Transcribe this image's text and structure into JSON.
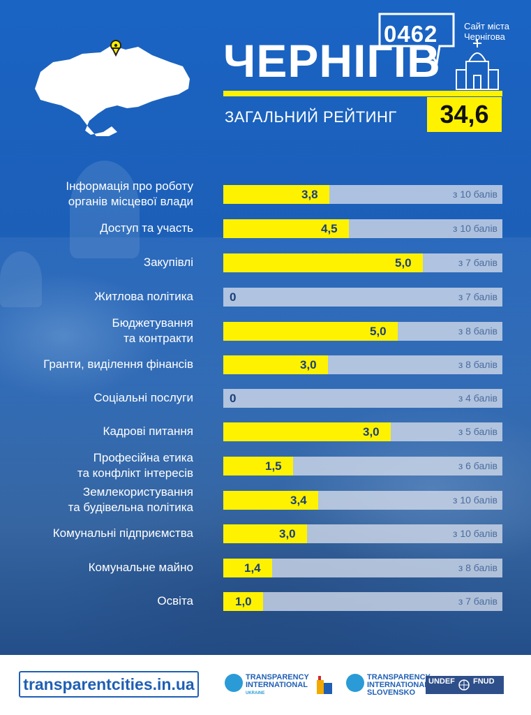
{
  "logo": {
    "number": "0462",
    "caption_line1": "Сайт міста",
    "caption_line2": "Чернігова"
  },
  "header": {
    "city": "ЧЕРНІГІВ",
    "subtitle": "ЗАГАЛЬНИЙ РЕЙТИНГ",
    "total_score": "34,6"
  },
  "colors": {
    "background": "#1f5fb4",
    "accent": "#fff200",
    "track": "#cdd7e8"
  },
  "chart_data": {
    "type": "bar",
    "orientation": "horizontal",
    "categories": [
      [
        "Інформація про роботу",
        "органів місцевої влади"
      ],
      [
        "Доступ та участь"
      ],
      [
        "Закупівлі"
      ],
      [
        "Житлова політика"
      ],
      [
        "Бюджетування",
        "та контракти"
      ],
      [
        "Гранти, виділення фінансів"
      ],
      [
        "Соціальні послуги"
      ],
      [
        "Кадрові питання"
      ],
      [
        "Професійна етика",
        "та конфлікт інтересів"
      ],
      [
        "Землекористування",
        "та будівельна політика"
      ],
      [
        "Комунальні підприємства"
      ],
      [
        "Комунальне майно"
      ],
      [
        "Освіта"
      ]
    ],
    "values": [
      3.8,
      4.5,
      5.0,
      0,
      5.0,
      3.0,
      0,
      3.0,
      1.5,
      3.4,
      3.0,
      1.4,
      1.0
    ],
    "value_labels": [
      "3,8",
      "4,5",
      "5,0",
      "0",
      "5,0",
      "3,0",
      "0",
      "3,0",
      "1,5",
      "3,4",
      "3,0",
      "1,4",
      "1,0"
    ],
    "max_values": [
      10,
      10,
      7,
      7,
      8,
      8,
      4,
      5,
      6,
      10,
      10,
      8,
      7
    ],
    "max_labels": [
      "з 10 балів",
      "з 10 балів",
      "з 7 балів",
      "з 7 балів",
      "з 8 балів",
      "з 8 балів",
      "з 4 балів",
      "з 5 балів",
      "з 6 балів",
      "з 10 балів",
      "з 10 балів",
      "з 8 балів",
      "з 7 балів"
    ]
  },
  "footer": {
    "url": "transparentcities.in.ua",
    "ti_ukraine": {
      "line1": "TRANSPARENCY",
      "line2": "INTERNATIONAL",
      "line3": "UKRAINE"
    },
    "ti_slovensko": {
      "line1": "TRANSPARENCY",
      "line2": "INTERNATIONAL",
      "line3": "SLOVENSKO"
    },
    "undef": {
      "left": "UNDEF",
      "right": "FNUD"
    }
  }
}
